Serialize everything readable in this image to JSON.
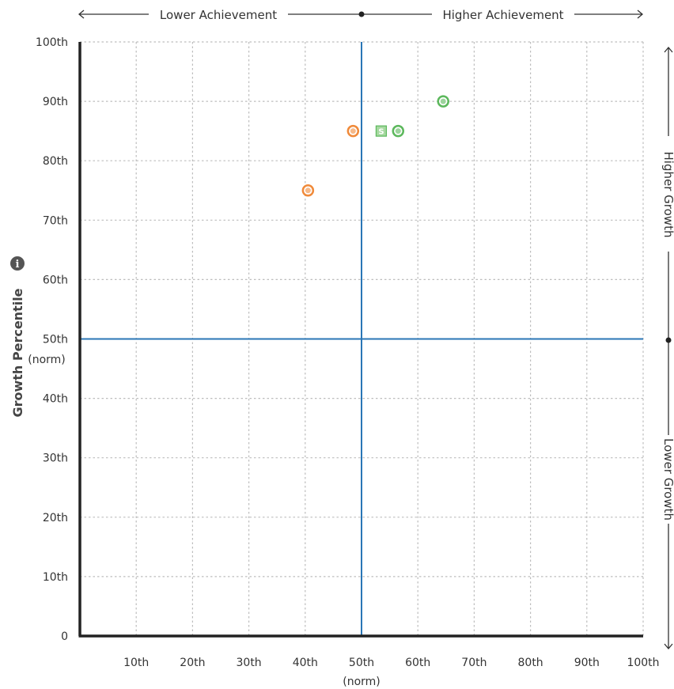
{
  "chart_data": {
    "type": "scatter",
    "ylabel": "Growth Percentile",
    "ylabel_sub": "(norm)",
    "xlabel_sub": "(norm)",
    "xlim": [
      0,
      100
    ],
    "ylim": [
      0,
      100
    ],
    "x_ticks": [
      "10th",
      "20th",
      "30th",
      "40th",
      "50th",
      "60th",
      "70th",
      "80th",
      "90th",
      "100th"
    ],
    "y_ticks": [
      "0",
      "10th",
      "20th",
      "30th",
      "40th",
      "50th",
      "60th",
      "70th",
      "80th",
      "90th",
      "100th"
    ],
    "top_left_label": "Lower Achievement",
    "top_right_label": "Higher Achievement",
    "right_top_label": "Higher Growth",
    "right_bottom_label": "Lower Growth",
    "grid": true,
    "quadrant_lines": {
      "x": 50,
      "y": 50,
      "color": "#2a76b6"
    },
    "points": [
      {
        "x": 40.5,
        "y": 75,
        "marker": "circle",
        "color": "#f08a3a"
      },
      {
        "x": 48.5,
        "y": 85,
        "marker": "circle",
        "color": "#f08a3a"
      },
      {
        "x": 53.5,
        "y": 85,
        "marker": "square",
        "color": "#5cb85c",
        "label": "S"
      },
      {
        "x": 56.5,
        "y": 85,
        "marker": "circle",
        "color": "#5cb85c"
      },
      {
        "x": 64.5,
        "y": 90,
        "marker": "circle",
        "color": "#5cb85c"
      }
    ]
  }
}
